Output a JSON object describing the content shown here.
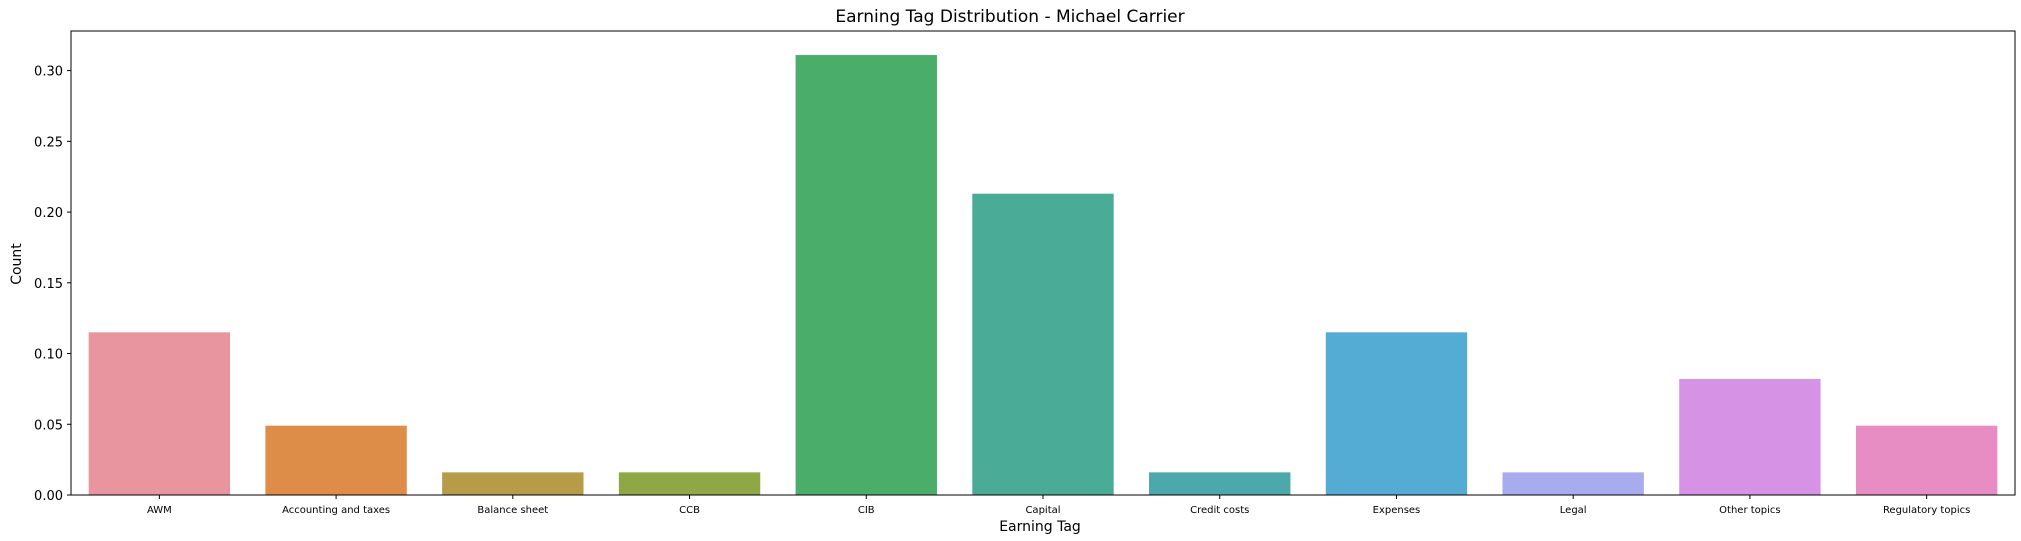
{
  "chart_data": {
    "type": "bar",
    "title": "Earning Tag Distribution - Michael Carrier",
    "xlabel": "Earning Tag",
    "ylabel": "Count",
    "categories": [
      "AWM",
      "Accounting and taxes",
      "Balance sheet",
      "CCB",
      "CIB",
      "Capital",
      "Credit costs",
      "Expenses",
      "Legal",
      "Other topics",
      "Regulatory topics"
    ],
    "values": [
      0.115,
      0.049,
      0.016,
      0.016,
      0.311,
      0.213,
      0.016,
      0.115,
      0.016,
      0.082,
      0.049
    ],
    "colors": [
      "#e8959f",
      "#dd8d48",
      "#b69b48",
      "#8fa745",
      "#4aae6a",
      "#4aab97",
      "#4ca8aa",
      "#54abd3",
      "#a8acef",
      "#d693e5",
      "#e88cc4"
    ],
    "ylim": [
      0,
      0.328
    ],
    "yticks": [
      "0.00",
      "0.05",
      "0.10",
      "0.15",
      "0.20",
      "0.25",
      "0.30"
    ],
    "grid": false
  }
}
